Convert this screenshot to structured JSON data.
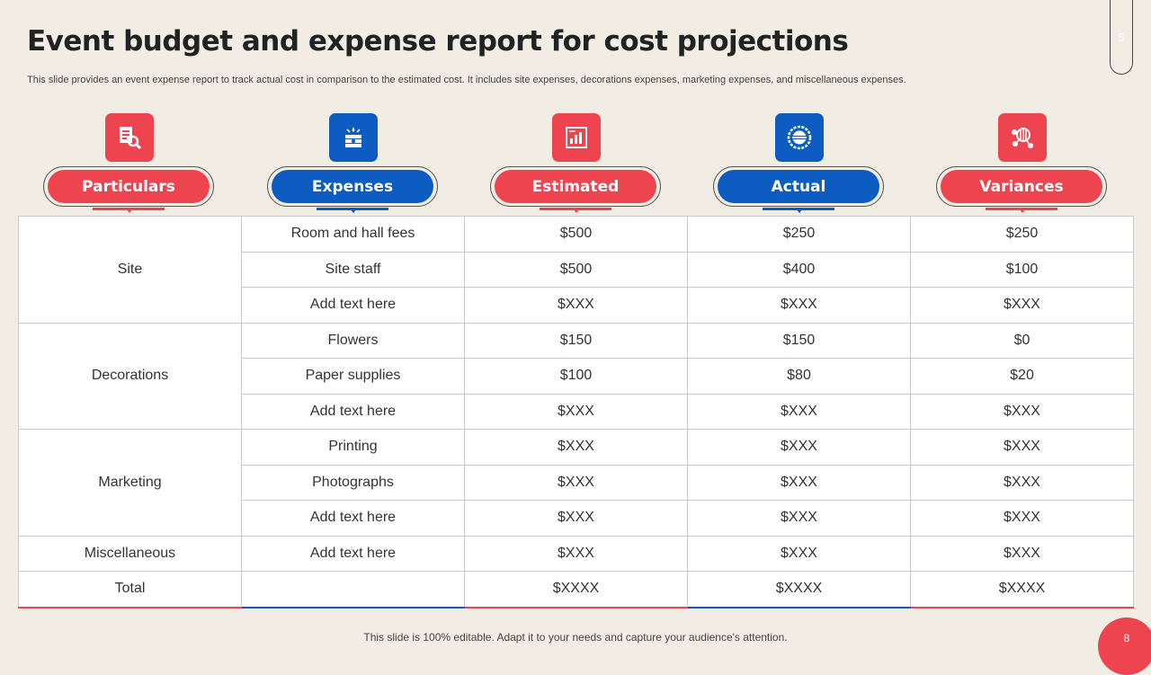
{
  "slide": {
    "title": "Event budget and expense report for cost projections",
    "subtitle": "This slide provides an event expense report to  track actual cost in comparison to the estimated cost.  It includes site expenses, decorations expenses, marketing expenses, and miscellaneous expenses.",
    "top_page_number": "5",
    "footer": "This slide is 100% editable. Adapt it to your needs and capture your audience's attention.",
    "page_number": "8"
  },
  "colors": {
    "accent_red": "#ee4450",
    "accent_blue": "#0c5cc2",
    "background": "#f2ede4"
  },
  "columns": [
    {
      "label": "Particulars",
      "icon": "document-magnifier-icon",
      "color": "red"
    },
    {
      "label": "Expenses",
      "icon": "money-stack-icon",
      "color": "blue"
    },
    {
      "label": "Estimated",
      "icon": "chart-report-icon",
      "color": "red"
    },
    {
      "label": "Actual",
      "icon": "actual-badge-icon",
      "color": "blue"
    },
    {
      "label": "Variances",
      "icon": "network-nodes-icon",
      "color": "red"
    }
  ],
  "groups": [
    {
      "name": "Site",
      "rows": [
        {
          "expense": "Room and hall fees",
          "estimated": "$500",
          "actual": "$250",
          "variance": "$250"
        },
        {
          "expense": "Site staff",
          "estimated": "$500",
          "actual": "$400",
          "variance": "$100"
        },
        {
          "expense": "Add text here",
          "estimated": "$XXX",
          "actual": "$XXX",
          "variance": "$XXX"
        }
      ]
    },
    {
      "name": "Decorations",
      "rows": [
        {
          "expense": "Flowers",
          "estimated": "$150",
          "actual": "$150",
          "variance": "$0"
        },
        {
          "expense": "Paper supplies",
          "estimated": "$100",
          "actual": "$80",
          "variance": "$20"
        },
        {
          "expense": "Add text here",
          "estimated": "$XXX",
          "actual": "$XXX",
          "variance": "$XXX"
        }
      ]
    },
    {
      "name": "Marketing",
      "rows": [
        {
          "expense": "Printing",
          "estimated": "$XXX",
          "actual": "$XXX",
          "variance": "$XXX"
        },
        {
          "expense": "Photographs",
          "estimated": "$XXX",
          "actual": "$XXX",
          "variance": "$XXX"
        },
        {
          "expense": "Add text here",
          "estimated": "$XXX",
          "actual": "$XXX",
          "variance": "$XXX"
        }
      ]
    },
    {
      "name": "Miscellaneous",
      "rows": [
        {
          "expense": "Add text here",
          "estimated": "$XXX",
          "actual": "$XXX",
          "variance": "$XXX"
        }
      ]
    }
  ],
  "total": {
    "label": "Total",
    "expense": "",
    "estimated": "$XXXX",
    "actual": "$XXXX",
    "variance": "$XXXX"
  }
}
